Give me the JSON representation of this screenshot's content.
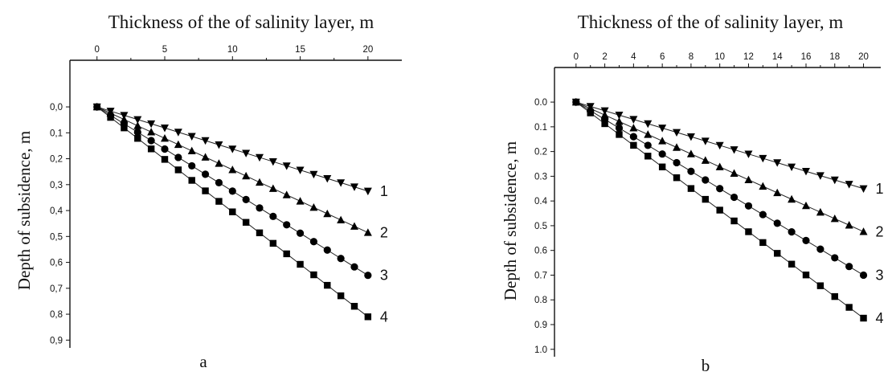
{
  "chart_data": [
    {
      "panel_label": "a",
      "type": "line",
      "title": "Thickness of the of salinity layer, m",
      "xlabel": "Thickness of the of salinity layer, m",
      "ylabel": "Depth of subsidence, m",
      "x_axis_position": "top",
      "y_inverted": true,
      "xlim": [
        -2,
        22.5
      ],
      "ylim": [
        -0.18,
        0.93
      ],
      "x_ticks": [
        0,
        5,
        10,
        15,
        20
      ],
      "x_tick_labels": [
        "0",
        "5",
        "10",
        "15",
        "20"
      ],
      "y_ticks": [
        0,
        0.1,
        0.2,
        0.3,
        0.4,
        0.5,
        0.6,
        0.7,
        0.8,
        0.9
      ],
      "y_tick_labels": [
        "0,0",
        "0,1",
        "0,2",
        "0,3",
        "0,4",
        "0,5",
        "0,6",
        "0,7",
        "0,8",
        "0,9"
      ],
      "x": [
        0,
        1,
        2,
        3,
        4,
        5,
        6,
        7,
        8,
        9,
        10,
        11,
        12,
        13,
        14,
        15,
        16,
        17,
        18,
        19,
        20
      ],
      "series": [
        {
          "name": "1",
          "marker": "triangle-down",
          "slope": 0.01625
        },
        {
          "name": "2",
          "marker": "triangle-up",
          "slope": 0.02425
        },
        {
          "name": "3",
          "marker": "circle",
          "slope": 0.0325
        },
        {
          "name": "4",
          "marker": "square",
          "slope": 0.0405
        }
      ],
      "grid": false
    },
    {
      "panel_label": "b",
      "type": "line",
      "title": "Thickness of the of salinity layer, m",
      "xlabel": "Thickness of the of salinity layer, m",
      "ylabel": "Depth of subsidence, m",
      "x_axis_position": "top",
      "y_inverted": true,
      "xlim": [
        -1.5,
        21.2
      ],
      "ylim": [
        -0.14,
        1.03
      ],
      "x_ticks": [
        0,
        2,
        4,
        6,
        8,
        10,
        12,
        14,
        16,
        18,
        20
      ],
      "x_tick_labels": [
        "0",
        "2",
        "4",
        "6",
        "8",
        "10",
        "12",
        "14",
        "16",
        "18",
        "20"
      ],
      "y_ticks": [
        0,
        0.1,
        0.2,
        0.3,
        0.4,
        0.5,
        0.6,
        0.7,
        0.8,
        0.9,
        1.0
      ],
      "y_tick_labels": [
        "0.0",
        "0.1",
        "0.2",
        "0.3",
        "0.4",
        "0.5",
        "0.6",
        "0.7",
        "0.8",
        "0.9",
        "1.0"
      ],
      "x": [
        0,
        1,
        2,
        3,
        4,
        5,
        6,
        7,
        8,
        9,
        10,
        11,
        12,
        13,
        14,
        15,
        16,
        17,
        18,
        19,
        20
      ],
      "series": [
        {
          "name": "1",
          "marker": "triangle-down",
          "slope": 0.0175
        },
        {
          "name": "2",
          "marker": "triangle-up",
          "slope": 0.0262
        },
        {
          "name": "3",
          "marker": "circle",
          "slope": 0.035
        },
        {
          "name": "4",
          "marker": "square",
          "slope": 0.0437
        }
      ],
      "grid": false
    }
  ]
}
